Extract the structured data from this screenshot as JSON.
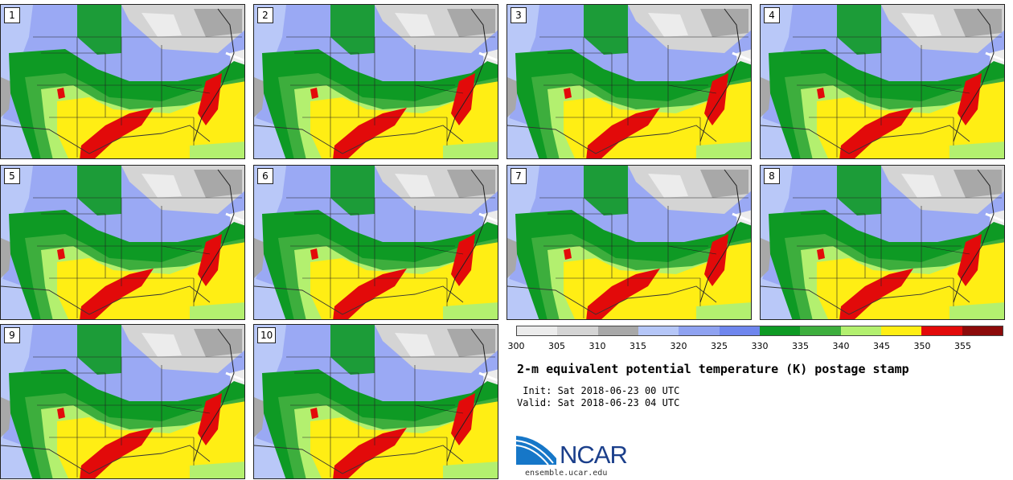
{
  "stamps": [
    "1",
    "2",
    "3",
    "4",
    "5",
    "6",
    "7",
    "8",
    "9",
    "10"
  ],
  "colorbar": {
    "colors": [
      "#ececec",
      "#d4d4d4",
      "#a8a8a8",
      "#b5c6f7",
      "#8fa2f1",
      "#6f86ee",
      "#0e9a24",
      "#3dae3d",
      "#b3f06f",
      "#ffee14",
      "#e20a0a",
      "#8c0a0a"
    ],
    "ticks": [
      "300",
      "305",
      "310",
      "315",
      "320",
      "325",
      "330",
      "335",
      "340",
      "345",
      "350",
      "355"
    ]
  },
  "title": "2-m equivalent potential temperature (K) postage stamp",
  "init_line": " Init: Sat 2018-06-23 00 UTC",
  "valid_line": "Valid: Sat 2018-06-23 04 UTC",
  "logo": {
    "text": "NCAR",
    "url": "ensemble.ucar.edu"
  }
}
